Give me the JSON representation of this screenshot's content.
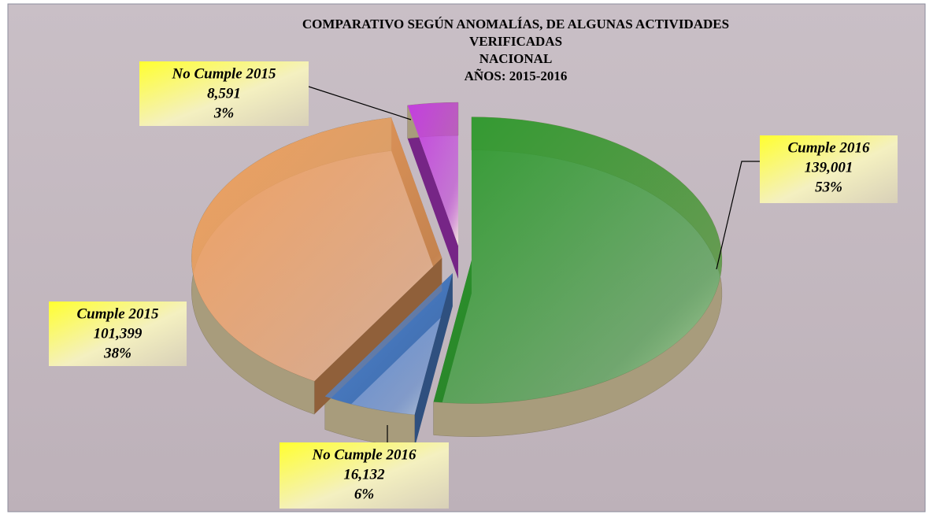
{
  "chart_data": {
    "type": "pie",
    "title_lines": [
      "COMPARATIVO SEGÚN ANOMALÍAS, DE ALGUNAS ACTIVIDADES",
      "VERIFICADAS",
      "NACIONAL",
      "AÑOS: 2015-2016"
    ],
    "categories": [
      "Cumple 2016",
      "No Cumple 2016",
      "Cumple 2015",
      "No Cumple 2015"
    ],
    "values": [
      139001,
      16132,
      101399,
      8591
    ],
    "value_labels": [
      "139,001",
      "16,132",
      "101,399",
      "8,591"
    ],
    "percent_labels": [
      "53%",
      "6%",
      "38%",
      "3%"
    ],
    "colors": [
      "#2f9a2f",
      "#4f86d4",
      "#f0a060",
      "#c43ee0"
    ]
  }
}
